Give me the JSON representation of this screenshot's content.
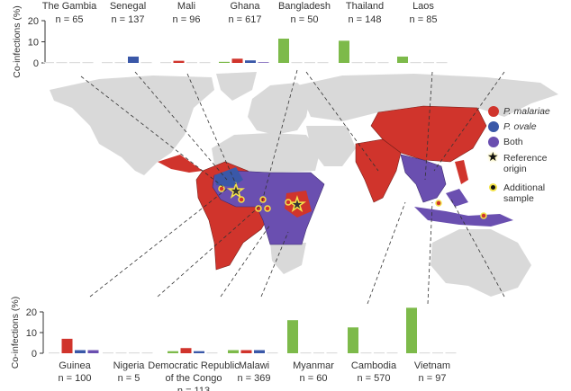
{
  "legend": {
    "items": [
      {
        "label": "P. malariae",
        "color": "#d0342c",
        "italic": true
      },
      {
        "label": "P. ovale",
        "color": "#3a58a8",
        "italic": true
      },
      {
        "label": "Both",
        "color": "#6a4fb0",
        "italic": false
      }
    ],
    "reference_label": [
      "Reference",
      "origin"
    ],
    "additional_label": [
      "Additional",
      "sample"
    ]
  },
  "chart_data": [
    {
      "type": "bar",
      "panel": "top",
      "ylabel": "Co-infections (%)",
      "ylim": [
        0,
        20
      ],
      "yticks": [
        0,
        10,
        20
      ],
      "series_colors": [
        "#7dba4a",
        "#d0342c",
        "#3a58a8",
        "#6a4fb0"
      ],
      "groups": [
        {
          "country": "The Gambia",
          "n": "n = 65",
          "values": [
            0,
            0,
            0,
            0
          ]
        },
        {
          "country": "Senegal",
          "n": "n = 137",
          "values": [
            0,
            0,
            3,
            0
          ]
        },
        {
          "country": "Mali",
          "n": "n = 96",
          "values": [
            0,
            1,
            0,
            0
          ]
        },
        {
          "country": "Ghana",
          "n": "n = 617",
          "values": [
            0.5,
            2,
            1.2,
            0.3
          ]
        },
        {
          "country": "Bangladesh",
          "n": "n = 50",
          "values": [
            11.5,
            0,
            0,
            0
          ]
        },
        {
          "country": "Thailand",
          "n": "n = 148",
          "values": [
            10.5,
            0,
            0,
            0
          ]
        },
        {
          "country": "Laos",
          "n": "n = 85",
          "values": [
            3,
            0,
            0,
            0
          ]
        }
      ]
    },
    {
      "type": "bar",
      "panel": "bottom",
      "ylabel": "Co-infections (%)",
      "ylim": [
        0,
        20
      ],
      "yticks": [
        0,
        10,
        20
      ],
      "series_colors": [
        "#7dba4a",
        "#d0342c",
        "#3a58a8",
        "#6a4fb0"
      ],
      "groups": [
        {
          "country": "Guinea",
          "n": "n = 100",
          "values": [
            0,
            7,
            1.5,
            1.5
          ]
        },
        {
          "country": "Nigeria",
          "n": "n = 5",
          "values": [
            0,
            0,
            0,
            0
          ]
        },
        {
          "country": "Democratic Republic|of the Congo",
          "n": "n = 113",
          "values": [
            1,
            2.5,
            1,
            0
          ]
        },
        {
          "country": "Malawi",
          "n": "n = 369",
          "values": [
            1.5,
            1.5,
            1.5,
            0
          ]
        },
        {
          "country": "Myanmar",
          "n": "n = 60",
          "values": [
            16,
            0,
            0,
            0
          ]
        },
        {
          "country": "Cambodia",
          "n": "n = 570",
          "values": [
            12.5,
            0,
            0,
            0
          ]
        },
        {
          "country": "Vietnam",
          "n": "n = 97",
          "values": [
            22,
            0,
            0,
            0
          ]
        }
      ]
    }
  ]
}
